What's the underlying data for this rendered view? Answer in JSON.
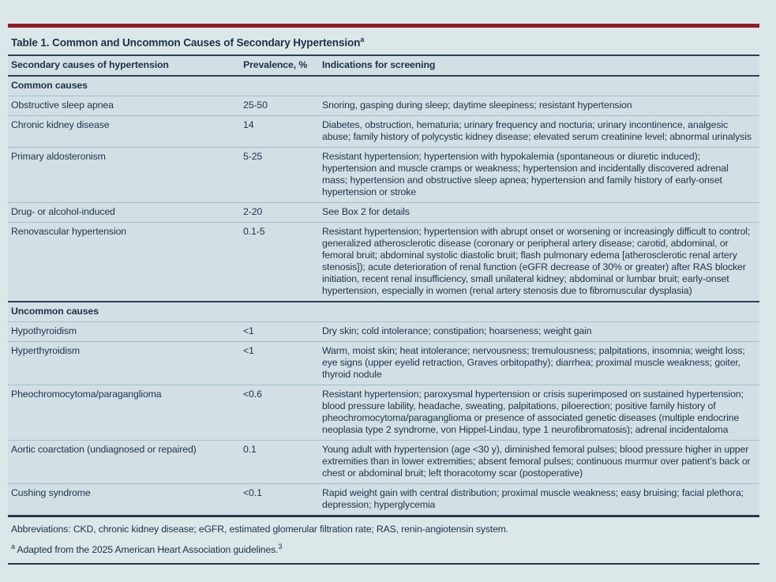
{
  "page": {
    "title": "Table 1. Common and Uncommon Causes of Secondary Hypertension",
    "title_superscript": "a"
  },
  "table": {
    "columns": {
      "cause": "Secondary causes of hypertension",
      "prevalence": "Prevalence, %",
      "indications": "Indications for screening"
    },
    "sections": [
      {
        "label": "Common causes",
        "rows": [
          {
            "cause": "Obstructive sleep apnea",
            "prevalence": "25-50",
            "indications": "Snoring, gasping during sleep; daytime sleepiness; resistant hypertension"
          },
          {
            "cause": "Chronic kidney disease",
            "prevalence": "14",
            "indications": "Diabetes, obstruction, hematuria; urinary frequency and nocturia; urinary incontinence, analgesic abuse; family history of polycystic kidney disease; elevated serum creatinine level; abnormal urinalysis"
          },
          {
            "cause": "Primary aldosteronism",
            "prevalence": "5-25",
            "indications": "Resistant hypertension; hypertension with hypokalemia (spontaneous or diuretic induced); hypertension and muscle cramps or weakness; hypertension and incidentally discovered adrenal mass; hypertension and obstructive sleep apnea; hypertension and family history of early-onset hypertension or stroke"
          },
          {
            "cause": "Drug- or alcohol-induced",
            "prevalence": "2-20",
            "indications": "See Box 2 for details"
          },
          {
            "cause": "Renovascular hypertension",
            "prevalence": "0.1-5",
            "indications": "Resistant hypertension; hypertension with abrupt onset or worsening or increasingly difficult to control; generalized atherosclerotic disease (coronary or peripheral artery disease; carotid, abdominal, or femoral bruit; abdominal systolic diastolic bruit; flash pulmonary edema [atherosclerotic renal artery stenosis]); acute deterioration of renal function (eGFR decrease of 30% or greater) after RAS blocker initiation, recent renal insufficiency, small unilateral kidney; abdominal or lumbar bruit; early-onset hypertension, especially in women (renal artery stenosis due to fibromuscular dysplasia)"
          }
        ]
      },
      {
        "label": "Uncommon causes",
        "rows": [
          {
            "cause": "Hypothyroidism",
            "prevalence": "<1",
            "indications": "Dry skin; cold intolerance; constipation; hoarseness; weight gain"
          },
          {
            "cause": "Hyperthyroidism",
            "prevalence": "<1",
            "indications": "Warm, moist skin; heat intolerance; nervousness; tremulousness; palpitations, insomnia; weight loss; eye signs (upper eyelid retraction, Graves orbitopathy); diarrhea; proximal muscle weakness; goiter, thyroid nodule"
          },
          {
            "cause": "Pheochromocytoma/paraganglioma",
            "prevalence": "<0.6",
            "indications": "Resistant hypertension; paroxysmal hypertension or crisis superimposed on sustained hypertension; blood pressure lability, headache, sweating, palpitations, piloerection; positive family history of pheochromocytoma/paraganglioma or presence of associated genetic diseases (multiple endocrine neoplasia type 2 syndrome, von Hippel-Lindau, type 1 neurofibromatosis); adrenal incidentaloma"
          },
          {
            "cause": "Aortic coarctation (undiagnosed or repaired)",
            "prevalence": "0.1",
            "indications": "Young adult with hypertension (age <30 y), diminished femoral pulses; blood pressure higher in upper extremities than in lower extremities; absent femoral pulses; continuous murmur over patient’s back or chest or abdominal bruit; left thoracotomy scar (postoperative)"
          },
          {
            "cause": "Cushing syndrome",
            "prevalence": "<0.1",
            "indications": "Rapid weight gain with central distribution; proximal muscle weakness; easy bruising; facial plethora; depression; hyperglycemia"
          }
        ]
      }
    ]
  },
  "footnotes": {
    "abbreviations": "Abbreviations: CKD, chronic kidney disease; eGFR, estimated glomerular filtration rate; RAS, renin-angiotensin system.",
    "footnote_a_marker": "a",
    "footnote_a_text": " Adapted from the 2025 American Heart Association guidelines.",
    "footnote_a_ref": "3"
  },
  "colors": {
    "accent_bar": "#8c1e2c",
    "page_bg": "#dce7e9",
    "table_bg": "#d2e0e6",
    "text": "#1c3347",
    "rule_dark": "#2b4254",
    "rule_light": "#a4bec8"
  }
}
